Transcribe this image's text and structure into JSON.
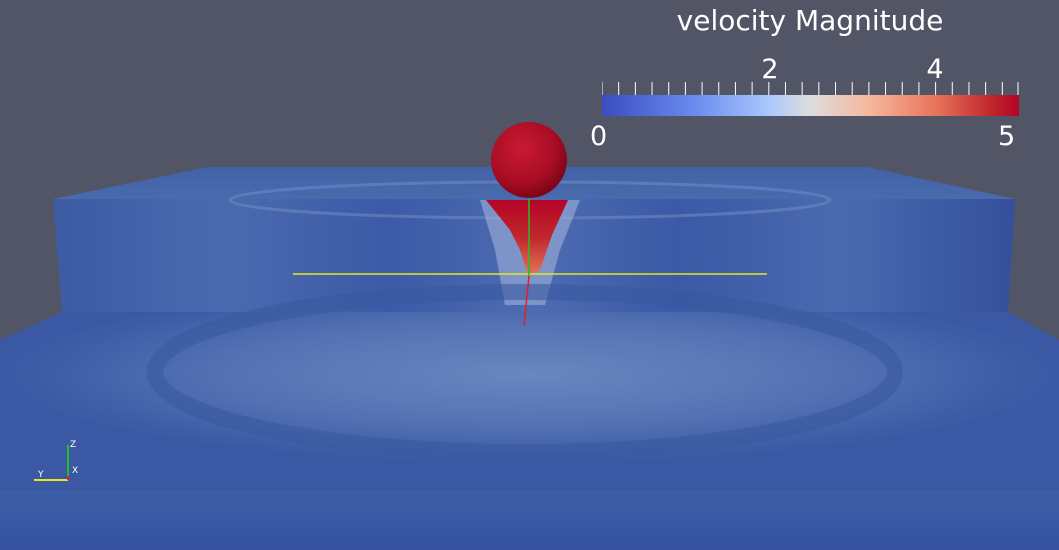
{
  "scalar_bar": {
    "title": "velocity Magnitude",
    "range": [
      0,
      5
    ],
    "min_label": "0",
    "max_label": "5",
    "tick_labels": [
      "2",
      "4"
    ],
    "colormap": "cool-to-warm",
    "colors": {
      "low": "#3b4cc0",
      "mid": "#dddddd",
      "high": "#b40426"
    }
  },
  "axes_triad": {
    "z_label": "Z",
    "y_label": "Y",
    "x_label": "X"
  },
  "scene": {
    "background": "#525566",
    "sphere_color": "#b0102a",
    "fluid_color": "#3a5aa8"
  }
}
